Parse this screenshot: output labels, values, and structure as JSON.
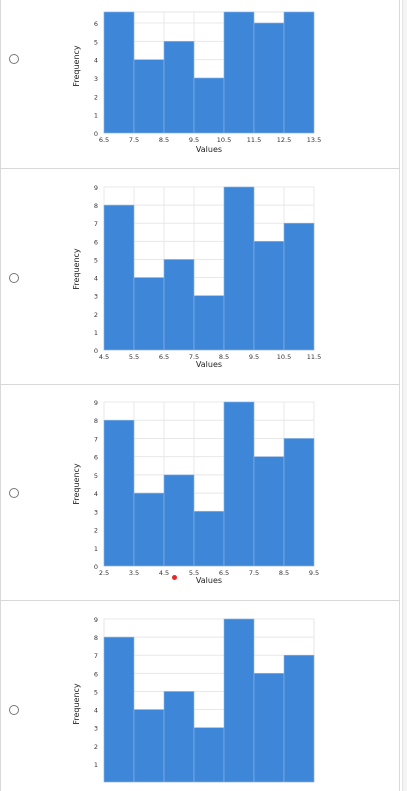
{
  "options": [
    {
      "chart_data": {
        "type": "bar",
        "xlabel": "Values",
        "ylabel": "Frequency",
        "x_ticks": [
          "6.5",
          "7.5",
          "8.5",
          "9.5",
          "10.5",
          "11.5",
          "12.5",
          "13.5"
        ],
        "y_ticks": [
          "0",
          "1",
          "2",
          "3",
          "4",
          "5",
          "6"
        ],
        "ylim": [
          0,
          6.6
        ],
        "bins": [
          {
            "start": 6.5,
            "end": 7.5,
            "value": 6.6
          },
          {
            "start": 7.5,
            "end": 8.5,
            "value": 4
          },
          {
            "start": 8.5,
            "end": 9.5,
            "value": 5
          },
          {
            "start": 9.5,
            "end": 10.5,
            "value": 3
          },
          {
            "start": 10.5,
            "end": 11.5,
            "value": 6.6
          },
          {
            "start": 11.5,
            "end": 12.5,
            "value": 6
          },
          {
            "start": 12.5,
            "end": 13.5,
            "value": 6.6
          }
        ],
        "bar_color": "#3d86d8",
        "grid": true
      }
    },
    {
      "chart_data": {
        "type": "bar",
        "xlabel": "Values",
        "ylabel": "Frequency",
        "x_ticks": [
          "4.5",
          "5.5",
          "6.5",
          "7.5",
          "8.5",
          "9.5",
          "10.5",
          "11.5"
        ],
        "y_ticks": [
          "0",
          "1",
          "2",
          "3",
          "4",
          "5",
          "6",
          "7",
          "8",
          "9"
        ],
        "ylim": [
          0,
          9
        ],
        "bins": [
          {
            "start": 4.5,
            "end": 5.5,
            "value": 8
          },
          {
            "start": 5.5,
            "end": 6.5,
            "value": 4
          },
          {
            "start": 6.5,
            "end": 7.5,
            "value": 5
          },
          {
            "start": 7.5,
            "end": 8.5,
            "value": 3
          },
          {
            "start": 8.5,
            "end": 9.5,
            "value": 9
          },
          {
            "start": 9.5,
            "end": 10.5,
            "value": 6
          },
          {
            "start": 10.5,
            "end": 11.5,
            "value": 7
          }
        ],
        "bar_color": "#3d86d8",
        "grid": true
      }
    },
    {
      "chart_data": {
        "type": "bar",
        "xlabel": "Values",
        "ylabel": "Frequency",
        "x_ticks": [
          "2.5",
          "3.5",
          "4.5",
          "5.5",
          "6.5",
          "7.5",
          "8.5",
          "9.5"
        ],
        "y_ticks": [
          "0",
          "1",
          "2",
          "3",
          "4",
          "5",
          "6",
          "7",
          "8",
          "9"
        ],
        "ylim": [
          0,
          9
        ],
        "bins": [
          {
            "start": 2.5,
            "end": 3.5,
            "value": 8
          },
          {
            "start": 3.5,
            "end": 4.5,
            "value": 4
          },
          {
            "start": 4.5,
            "end": 5.5,
            "value": 5
          },
          {
            "start": 5.5,
            "end": 6.5,
            "value": 3
          },
          {
            "start": 6.5,
            "end": 7.5,
            "value": 9
          },
          {
            "start": 7.5,
            "end": 8.5,
            "value": 6
          },
          {
            "start": 8.5,
            "end": 9.5,
            "value": 7
          }
        ],
        "bar_color": "#3d86d8",
        "grid": true
      }
    },
    {
      "chart_data": {
        "type": "bar",
        "xlabel": "",
        "ylabel": "Frequency",
        "x_ticks": [],
        "y_ticks": [
          "1",
          "2",
          "3",
          "4",
          "5",
          "6",
          "7",
          "8",
          "9"
        ],
        "ylim": [
          0,
          9
        ],
        "bins": [
          {
            "start": 0,
            "end": 1,
            "value": 8
          },
          {
            "start": 1,
            "end": 2,
            "value": 4
          },
          {
            "start": 2,
            "end": 3,
            "value": 5
          },
          {
            "start": 3,
            "end": 4,
            "value": 3
          },
          {
            "start": 4,
            "end": 5,
            "value": 9
          },
          {
            "start": 5,
            "end": 6,
            "value": 6
          },
          {
            "start": 6,
            "end": 7,
            "value": 7
          }
        ],
        "bar_color": "#3d86d8",
        "grid": true
      }
    }
  ],
  "cursor_marker_color": "#e8272a"
}
